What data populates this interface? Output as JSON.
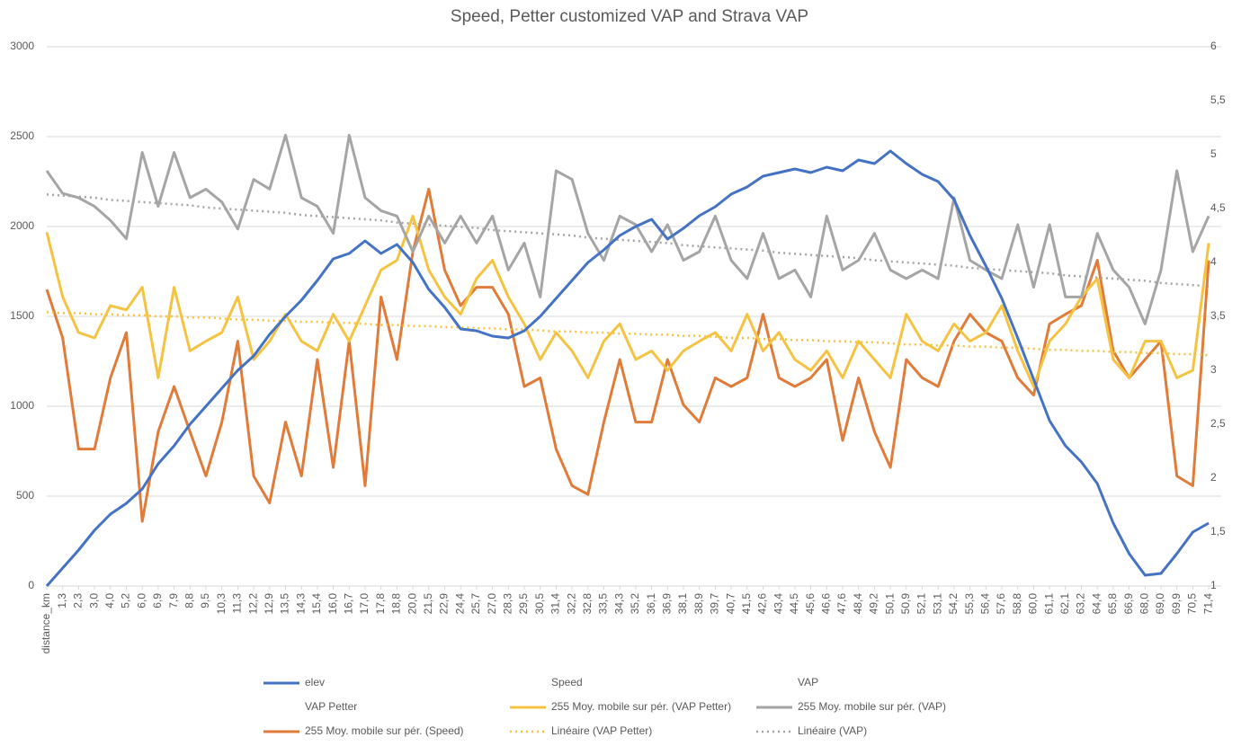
{
  "chart_data": {
    "type": "line",
    "title": "Speed, Petter customized VAP and Strava VAP",
    "categories": [
      "distance_km",
      "1,3",
      "2,3",
      "3,0",
      "4,0",
      "5,2",
      "6,0",
      "6,9",
      "7,9",
      "8,8",
      "9,5",
      "10,3",
      "11,3",
      "12,2",
      "12,9",
      "13,5",
      "14,3",
      "15,4",
      "16,0",
      "16,7",
      "17,0",
      "17,8",
      "18,8",
      "20,0",
      "21,5",
      "22,9",
      "24,4",
      "25,7",
      "27,0",
      "28,3",
      "29,5",
      "30,5",
      "31,4",
      "32,2",
      "32,8",
      "33,5",
      "34,3",
      "35,2",
      "36,1",
      "36,9",
      "38,1",
      "38,9",
      "39,7",
      "40,7",
      "41,5",
      "42,6",
      "43,4",
      "44,5",
      "45,6",
      "46,6",
      "47,6",
      "48,4",
      "49,2",
      "50,1",
      "50,9",
      "52,1",
      "53,1",
      "54,2",
      "55,3",
      "56,4",
      "57,6",
      "58,8",
      "60,0",
      "61,1",
      "62,1",
      "63,2",
      "64,4",
      "65,8",
      "66,9",
      "68,0",
      "69,0",
      "69,9",
      "70,5",
      "71,4"
    ],
    "ylim": [
      0,
      3000
    ],
    "yticks": [
      0,
      500,
      1000,
      1500,
      2000,
      2500,
      3000
    ],
    "y2lim": [
      1,
      6
    ],
    "y2ticks": [
      1,
      {
        "value": 1.5,
        "label": "1,5"
      },
      2,
      {
        "value": 2.5,
        "label": "2,5"
      },
      3,
      {
        "value": 3.5,
        "label": "3,5"
      },
      4,
      {
        "value": 4.5,
        "label": "4,5"
      },
      5,
      {
        "value": 5.5,
        "label": "5,5"
      },
      6
    ],
    "grid": true,
    "series": [
      {
        "name": "elev",
        "color": "#4472c4",
        "values": [
          0,
          100,
          200,
          310,
          400,
          460,
          540,
          680,
          780,
          900,
          1000,
          1100,
          1200,
          1280,
          1400,
          1500,
          1590,
          1700,
          1820,
          1850,
          1920,
          1850,
          1900,
          1800,
          1650,
          1550,
          1430,
          1420,
          1390,
          1380,
          1420,
          1500,
          1600,
          1700,
          1800,
          1870,
          1950,
          2000,
          2040,
          1930,
          1990,
          2060,
          2110,
          2180,
          2220,
          2280,
          2300,
          2320,
          2300,
          2330,
          2310,
          2370,
          2350,
          2420,
          2350,
          2290,
          2250,
          2150,
          1950,
          1780,
          1600,
          1380,
          1150,
          920,
          780,
          690,
          570,
          350,
          180,
          60,
          70,
          180,
          300,
          350
        ]
      },
      {
        "name": "Speed",
        "visible": false
      },
      {
        "name": "VAP",
        "visible": false
      },
      {
        "name": "VAP Petter",
        "visible": false
      },
      {
        "name": "255 Moy. mobile sur pér. (VAP Petter)",
        "color": "#f5c342",
        "axis": "y2",
        "values": [
          4.28,
          3.68,
          3.35,
          3.3,
          3.6,
          3.56,
          3.77,
          2.93,
          3.77,
          3.18,
          3.27,
          3.35,
          3.68,
          3.1,
          3.27,
          3.52,
          3.27,
          3.18,
          3.52,
          3.27,
          3.6,
          3.93,
          4.02,
          4.43,
          3.93,
          3.68,
          3.52,
          3.85,
          4.02,
          3.68,
          3.43,
          3.1,
          3.35,
          3.18,
          2.93,
          3.27,
          3.43,
          3.1,
          3.18,
          3.0,
          3.18,
          3.27,
          3.35,
          3.18,
          3.52,
          3.18,
          3.35,
          3.1,
          3.0,
          3.18,
          2.93,
          3.27,
          3.1,
          2.93,
          3.52,
          3.27,
          3.18,
          3.43,
          3.27,
          3.35,
          3.6,
          3.18,
          2.85,
          3.27,
          3.43,
          3.68,
          3.85,
          3.1,
          2.93,
          3.27,
          3.27,
          2.93,
          3.0,
          4.18
        ]
      },
      {
        "name": "255 Moy. mobile sur pér. (VAP)",
        "color": "#a5a5a5",
        "axis": "y2",
        "values": [
          4.85,
          4.64,
          4.6,
          4.52,
          4.39,
          4.22,
          5.02,
          4.52,
          5.02,
          4.6,
          4.68,
          4.56,
          4.31,
          4.77,
          4.68,
          5.18,
          4.6,
          4.52,
          4.27,
          5.18,
          4.6,
          4.48,
          4.43,
          4.1,
          4.43,
          4.18,
          4.43,
          4.18,
          4.43,
          3.93,
          4.18,
          3.68,
          4.85,
          4.77,
          4.27,
          4.02,
          4.43,
          4.35,
          4.1,
          4.35,
          4.02,
          4.1,
          4.43,
          4.02,
          3.85,
          4.27,
          3.85,
          3.93,
          3.68,
          4.43,
          3.93,
          4.02,
          4.27,
          3.93,
          3.85,
          3.93,
          3.85,
          4.6,
          4.02,
          3.93,
          3.85,
          4.35,
          3.77,
          4.35,
          3.68,
          3.68,
          4.27,
          3.93,
          3.77,
          3.43,
          3.93,
          4.85,
          4.1,
          4.43
        ]
      },
      {
        "name": "255 Moy. mobile sur pér. (Speed)",
        "color": "#e07b39",
        "axis": "y2",
        "values": [
          3.75,
          3.3,
          2.27,
          2.27,
          2.93,
          3.35,
          1.6,
          2.43,
          2.85,
          2.43,
          2.02,
          2.52,
          3.27,
          2.02,
          1.77,
          2.52,
          2.02,
          3.1,
          2.1,
          3.27,
          1.93,
          3.68,
          3.1,
          4.1,
          4.68,
          3.93,
          3.6,
          3.77,
          3.77,
          3.52,
          2.85,
          2.93,
          2.27,
          1.93,
          1.85,
          2.52,
          3.1,
          2.52,
          2.52,
          3.1,
          2.68,
          2.52,
          2.93,
          2.85,
          2.93,
          3.52,
          2.93,
          2.85,
          2.93,
          3.1,
          2.35,
          2.93,
          2.43,
          2.1,
          3.1,
          2.93,
          2.85,
          3.27,
          3.52,
          3.35,
          3.27,
          2.93,
          2.77,
          3.43,
          3.52,
          3.6,
          4.02,
          3.18,
          2.93,
          3.1,
          3.27,
          2.02,
          1.93,
          4.02
        ]
      },
      {
        "name": "Linéaire (VAP Petter)",
        "color": "#f5c342",
        "axis": "y2",
        "style": "dotted",
        "values": [
          3.54,
          3.53,
          3.53,
          3.52,
          3.52,
          3.51,
          3.51,
          3.5,
          3.5,
          3.49,
          3.49,
          3.48,
          3.47,
          3.47,
          3.46,
          3.46,
          3.45,
          3.45,
          3.44,
          3.44,
          3.43,
          3.42,
          3.42,
          3.41,
          3.41,
          3.4,
          3.4,
          3.39,
          3.39,
          3.38,
          3.38,
          3.37,
          3.36,
          3.36,
          3.35,
          3.35,
          3.34,
          3.34,
          3.33,
          3.33,
          3.32,
          3.32,
          3.31,
          3.3,
          3.3,
          3.29,
          3.29,
          3.28,
          3.28,
          3.27,
          3.27,
          3.26,
          3.26,
          3.25,
          3.24,
          3.24,
          3.23,
          3.23,
          3.22,
          3.22,
          3.21,
          3.21,
          3.2,
          3.19,
          3.19,
          3.18,
          3.18,
          3.17,
          3.17,
          3.16,
          3.16,
          3.15,
          3.15,
          3.14
        ]
      },
      {
        "name": "Linéaire (VAP)",
        "color": "#a5a5a5",
        "axis": "y2",
        "style": "dotted",
        "values": [
          4.63,
          4.62,
          4.61,
          4.6,
          4.58,
          4.57,
          4.56,
          4.55,
          4.54,
          4.53,
          4.51,
          4.5,
          4.49,
          4.48,
          4.47,
          4.46,
          4.44,
          4.43,
          4.42,
          4.41,
          4.4,
          4.39,
          4.37,
          4.36,
          4.35,
          4.34,
          4.33,
          4.32,
          4.3,
          4.29,
          4.28,
          4.27,
          4.26,
          4.25,
          4.23,
          4.22,
          4.21,
          4.2,
          4.19,
          4.18,
          4.16,
          4.15,
          4.14,
          4.13,
          4.12,
          4.11,
          4.09,
          4.08,
          4.07,
          4.06,
          4.05,
          4.04,
          4.02,
          4.01,
          4.0,
          3.99,
          3.98,
          3.97,
          3.95,
          3.94,
          3.93,
          3.92,
          3.91,
          3.9,
          3.88,
          3.87,
          3.86,
          3.85,
          3.84,
          3.83,
          3.81,
          3.8,
          3.79,
          3.78
        ]
      }
    ]
  }
}
